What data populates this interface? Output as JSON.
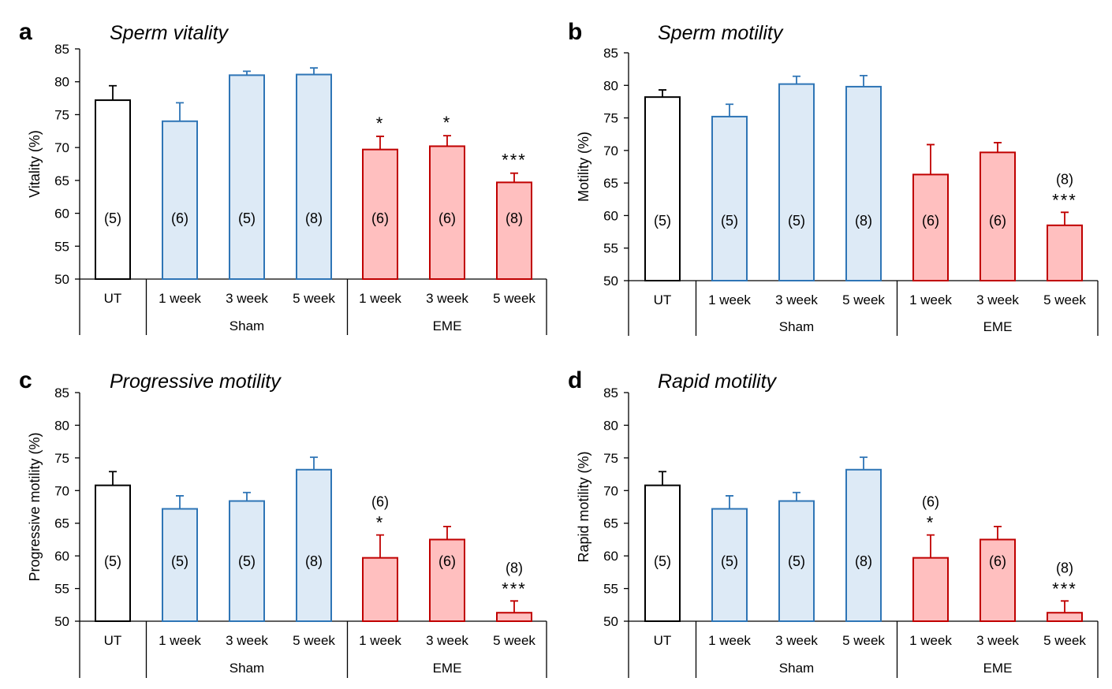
{
  "chart_data": [
    {
      "type": "bar",
      "panel_letter": "a",
      "title": "Sperm vitality",
      "ylabel": "Vitality (%)",
      "ylim": [
        50,
        85
      ],
      "yticks": [
        50,
        55,
        60,
        65,
        70,
        75,
        80,
        85
      ],
      "categories": [
        "UT",
        "1 week",
        "3 week",
        "5 week",
        "1 week",
        "3 week",
        "5 week"
      ],
      "groups": [
        {
          "label": "Sham",
          "from": 1,
          "to": 3
        },
        {
          "label": "EME",
          "from": 4,
          "to": 6
        }
      ],
      "values": [
        77.2,
        74.0,
        81.0,
        81.1,
        69.7,
        70.2,
        64.7
      ],
      "errors": [
        2.2,
        2.8,
        0.6,
        1.0,
        2.0,
        1.6,
        1.4
      ],
      "n_labels": [
        "(5)",
        "(6)",
        "(5)",
        "(8)",
        "(6)",
        "(6)",
        "(8)"
      ],
      "significance": [
        "",
        "",
        "",
        "",
        "*",
        "*",
        "***"
      ],
      "colors": [
        "#ffffff",
        "#ddeaf6",
        "#ddeaf6",
        "#ddeaf6",
        "#ffbfbf",
        "#ffbfbf",
        "#ffbfbf"
      ],
      "edge_colors": [
        "#000000",
        "#2e75b6",
        "#2e75b6",
        "#2e75b6",
        "#c00000",
        "#c00000",
        "#c00000"
      ],
      "grid": false
    },
    {
      "type": "bar",
      "panel_letter": "b",
      "title": "Sperm motility",
      "ylabel": "Motility (%)",
      "ylim": [
        50,
        85
      ],
      "yticks": [
        50,
        55,
        60,
        65,
        70,
        75,
        80,
        85
      ],
      "categories": [
        "UT",
        "1 week",
        "3 week",
        "5 week",
        "1 week",
        "3 week",
        "5 week"
      ],
      "groups": [
        {
          "label": "Sham",
          "from": 1,
          "to": 3
        },
        {
          "label": "EME",
          "from": 4,
          "to": 6
        }
      ],
      "values": [
        78.2,
        75.2,
        80.2,
        79.8,
        66.3,
        69.7,
        58.5
      ],
      "errors": [
        1.1,
        1.9,
        1.2,
        1.7,
        4.6,
        1.5,
        2.0
      ],
      "n_labels": [
        "(5)",
        "(5)",
        "(5)",
        "(8)",
        "(6)",
        "(6)",
        "(8)"
      ],
      "significance": [
        "",
        "",
        "",
        "",
        "",
        "",
        "***"
      ],
      "colors": [
        "#ffffff",
        "#ddeaf6",
        "#ddeaf6",
        "#ddeaf6",
        "#ffbfbf",
        "#ffbfbf",
        "#ffbfbf"
      ],
      "edge_colors": [
        "#000000",
        "#2e75b6",
        "#2e75b6",
        "#2e75b6",
        "#c00000",
        "#c00000",
        "#c00000"
      ],
      "grid": false
    },
    {
      "type": "bar",
      "panel_letter": "c",
      "title": "Progressive motility",
      "ylabel": "Progressive motility (%)",
      "ylim": [
        50,
        85
      ],
      "yticks": [
        50,
        55,
        60,
        65,
        70,
        75,
        80,
        85
      ],
      "categories": [
        "UT",
        "1 week",
        "3 week",
        "5 week",
        "1 week",
        "3 week",
        "5 week"
      ],
      "groups": [
        {
          "label": "Sham",
          "from": 1,
          "to": 3
        },
        {
          "label": "EME",
          "from": 4,
          "to": 6
        }
      ],
      "values": [
        70.8,
        67.2,
        68.4,
        73.2,
        59.7,
        62.5,
        51.3
      ],
      "errors": [
        2.1,
        2.0,
        1.3,
        1.9,
        3.5,
        2.0,
        1.8
      ],
      "n_labels": [
        "(5)",
        "(5)",
        "(5)",
        "(8)",
        "(6)",
        "(6)",
        "(8)"
      ],
      "significance": [
        "",
        "",
        "",
        "",
        "*",
        "",
        "***"
      ],
      "colors": [
        "#ffffff",
        "#ddeaf6",
        "#ddeaf6",
        "#ddeaf6",
        "#ffbfbf",
        "#ffbfbf",
        "#ffbfbf"
      ],
      "edge_colors": [
        "#000000",
        "#2e75b6",
        "#2e75b6",
        "#2e75b6",
        "#c00000",
        "#c00000",
        "#c00000"
      ],
      "grid": false
    },
    {
      "type": "bar",
      "panel_letter": "d",
      "title": "Rapid motility",
      "ylabel": "Rapid motility (%)",
      "ylim": [
        50,
        85
      ],
      "yticks": [
        50,
        55,
        60,
        65,
        70,
        75,
        80,
        85
      ],
      "categories": [
        "UT",
        "1 week",
        "3 week",
        "5 week",
        "1 week",
        "3 week",
        "5 week"
      ],
      "groups": [
        {
          "label": "Sham",
          "from": 1,
          "to": 3
        },
        {
          "label": "EME",
          "from": 4,
          "to": 6
        }
      ],
      "values": [
        70.8,
        67.2,
        68.4,
        73.2,
        59.7,
        62.5,
        51.3
      ],
      "errors": [
        2.1,
        2.0,
        1.3,
        1.9,
        3.5,
        2.0,
        1.8
      ],
      "n_labels": [
        "(5)",
        "(5)",
        "(5)",
        "(8)",
        "(6)",
        "(6)",
        "(8)"
      ],
      "significance": [
        "",
        "",
        "",
        "",
        "*",
        "",
        "***"
      ],
      "colors": [
        "#ffffff",
        "#ddeaf6",
        "#ddeaf6",
        "#ddeaf6",
        "#ffbfbf",
        "#ffbfbf",
        "#ffbfbf"
      ],
      "edge_colors": [
        "#000000",
        "#2e75b6",
        "#2e75b6",
        "#2e75b6",
        "#c00000",
        "#c00000",
        "#c00000"
      ],
      "grid": false
    }
  ]
}
